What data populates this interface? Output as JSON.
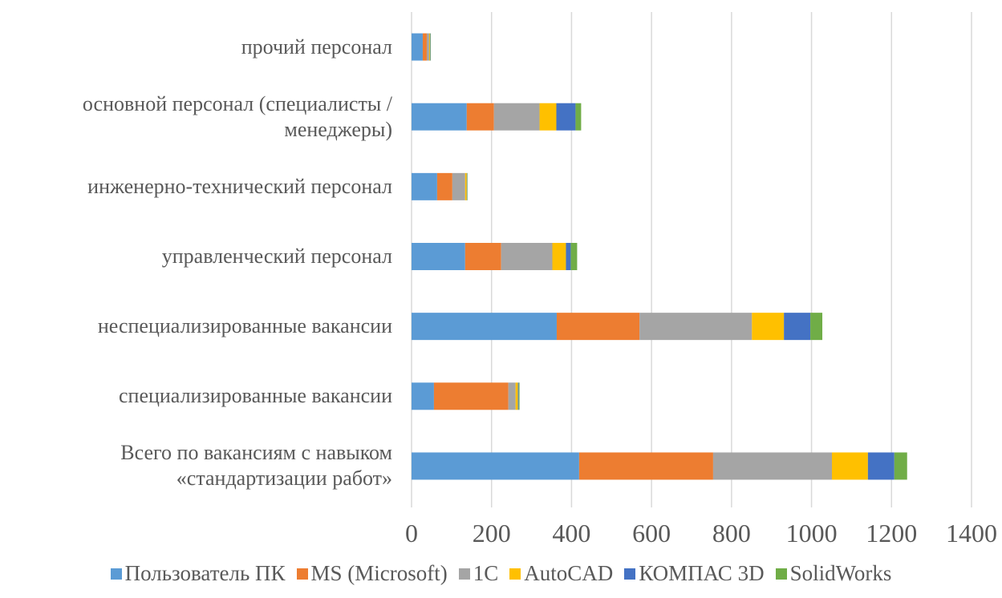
{
  "chart_data": {
    "type": "bar",
    "orientation": "horizontal",
    "stacked": true,
    "categories": [
      "прочий персонал",
      "основной персонал (специалисты / менеджеры)",
      "инженерно-технический персонал",
      "управленческий персонал",
      "неспециализированные вакансии",
      "специализированные вакансии",
      "Всего по вакансиям с навыком «стандартизации работ»"
    ],
    "series": [
      {
        "name": "Пользователь ПК",
        "color": "#5b9bd5",
        "values": [
          28,
          138,
          64,
          134,
          363,
          56,
          419
        ]
      },
      {
        "name": "MS (Microsoft)",
        "color": "#ed7d31",
        "values": [
          10,
          68,
          38,
          90,
          207,
          186,
          335
        ]
      },
      {
        "name": "1С",
        "color": "#a5a5a5",
        "values": [
          6,
          114,
          32,
          128,
          281,
          18,
          297
        ]
      },
      {
        "name": "AutoCAD",
        "color": "#ffc000",
        "values": [
          2,
          42,
          4,
          34,
          80,
          6,
          90
        ]
      },
      {
        "name": "КОМПАС 3D",
        "color": "#4472c4",
        "values": [
          1,
          48,
          1,
          12,
          66,
          2,
          66
        ]
      },
      {
        "name": "SolidWorks",
        "color": "#70ad47",
        "values": [
          1,
          14,
          1,
          16,
          30,
          2,
          32
        ]
      }
    ],
    "xlim": [
      0,
      1400
    ],
    "xticks": [
      0,
      200,
      400,
      600,
      800,
      1000,
      1200,
      1400
    ],
    "grid": true,
    "legend": "bottom"
  }
}
